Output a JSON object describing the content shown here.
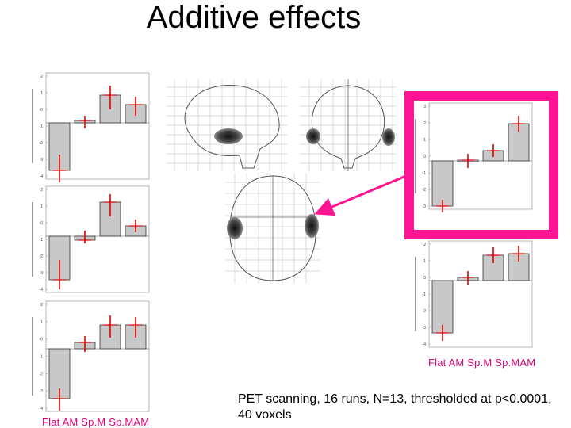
{
  "title": "Additive effects",
  "caption": "PET scanning, 16 runs, N=13, thresholded at p<0.0001, 40 voxels",
  "condition_label_left": "Flat  AM  Sp.M Sp.MAM",
  "condition_label_right": "Flat  AM  Sp.M Sp.MAM",
  "colors": {
    "highlight": "#ff1493",
    "label": "#e0007a",
    "errorbar": "#e00000",
    "bar": "#c8c8c8"
  },
  "plots": [
    {
      "ytick_labels": [
        "2",
        "1",
        "0",
        "-1",
        "-2",
        "-3",
        "-4"
      ]
    },
    {
      "ytick_labels": [
        "2",
        "1",
        "0",
        "-1",
        "-2",
        "-3",
        "-4"
      ]
    },
    {
      "ytick_labels": [
        "2",
        "1",
        "0",
        "-1",
        "-2",
        "-3",
        "-4"
      ]
    },
    {
      "ytick_labels": [
        "3",
        "2",
        "1",
        "0",
        "-1",
        "-2",
        "-3"
      ]
    },
    {
      "ytick_labels": [
        "2",
        "1",
        "0",
        "-1",
        "-2",
        "-3",
        "-4"
      ]
    }
  ]
}
